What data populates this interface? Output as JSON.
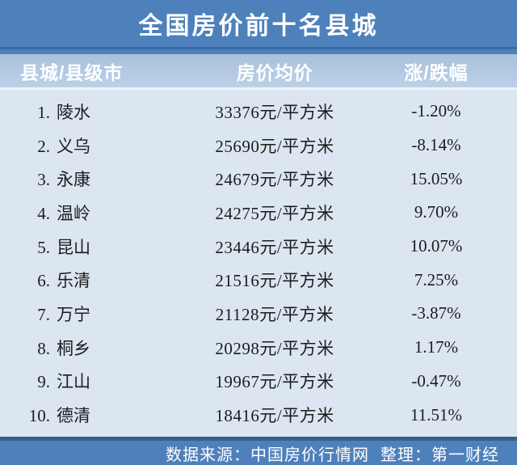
{
  "title": "全国房价前十名县城",
  "table": {
    "headers": [
      "县城/县级市",
      "房价均价",
      "涨/跌幅"
    ],
    "rows": [
      {
        "rank": "1.",
        "name": "陵水",
        "price": "33376元/平方米",
        "change": "-1.20%"
      },
      {
        "rank": "2.",
        "name": "义乌",
        "price": "25690元/平方米",
        "change": "-8.14%"
      },
      {
        "rank": "3.",
        "name": "永康",
        "price": "24679元/平方米",
        "change": "15.05%"
      },
      {
        "rank": "4.",
        "name": "温岭",
        "price": "24275元/平方米",
        "change": "9.70%"
      },
      {
        "rank": "5.",
        "name": "昆山",
        "price": "23446元/平方米",
        "change": "10.07%"
      },
      {
        "rank": "6.",
        "name": "乐清",
        "price": "21516元/平方米",
        "change": "7.25%"
      },
      {
        "rank": "7.",
        "name": "万宁",
        "price": "21128元/平方米",
        "change": "-3.87%"
      },
      {
        "rank": "8.",
        "name": "桐乡",
        "price": "20298元/平方米",
        "change": "1.17%"
      },
      {
        "rank": "9.",
        "name": "江山",
        "price": "19967元/平方米",
        "change": "-0.47%"
      },
      {
        "rank": "10.",
        "name": "德清",
        "price": "18416元/平方米",
        "change": "11.51%"
      }
    ]
  },
  "footer": {
    "source_label": "数据来源：中国房价行情网",
    "editor_label": "整理：第一财经"
  },
  "colors": {
    "blue": "#4e81bc",
    "blue_dark_line": "#3d6ba3",
    "header_band_top": "#a9c1dc",
    "header_band_bottom": "#bdd0e7",
    "body_bg": "#dce6f1",
    "sep_light": "#eef4fa",
    "footer_line": "#33608d",
    "text_dark": "#1c1c1c"
  },
  "chart_data": {
    "type": "table",
    "title": "全国房价前十名县城",
    "columns": [
      "县城/县级市",
      "房价均价",
      "涨/跌幅"
    ],
    "price_unit": "元/平方米",
    "change_unit": "%",
    "rows": [
      {
        "rank": 1,
        "county": "陵水",
        "avg_price": 33376,
        "change_pct": -1.2
      },
      {
        "rank": 2,
        "county": "义乌",
        "avg_price": 25690,
        "change_pct": -8.14
      },
      {
        "rank": 3,
        "county": "永康",
        "avg_price": 24679,
        "change_pct": 15.05
      },
      {
        "rank": 4,
        "county": "温岭",
        "avg_price": 24275,
        "change_pct": 9.7
      },
      {
        "rank": 5,
        "county": "昆山",
        "avg_price": 23446,
        "change_pct": 10.07
      },
      {
        "rank": 6,
        "county": "乐清",
        "avg_price": 21516,
        "change_pct": 7.25
      },
      {
        "rank": 7,
        "county": "万宁",
        "avg_price": 21128,
        "change_pct": -3.87
      },
      {
        "rank": 8,
        "county": "桐乡",
        "avg_price": 20298,
        "change_pct": 1.17
      },
      {
        "rank": 9,
        "county": "江山",
        "avg_price": 19967,
        "change_pct": -0.47
      },
      {
        "rank": 10,
        "county": "德清",
        "avg_price": 18416,
        "change_pct": 11.51
      }
    ],
    "source": "数据来源：中国房价行情网",
    "compiled_by": "整理：第一财经"
  }
}
